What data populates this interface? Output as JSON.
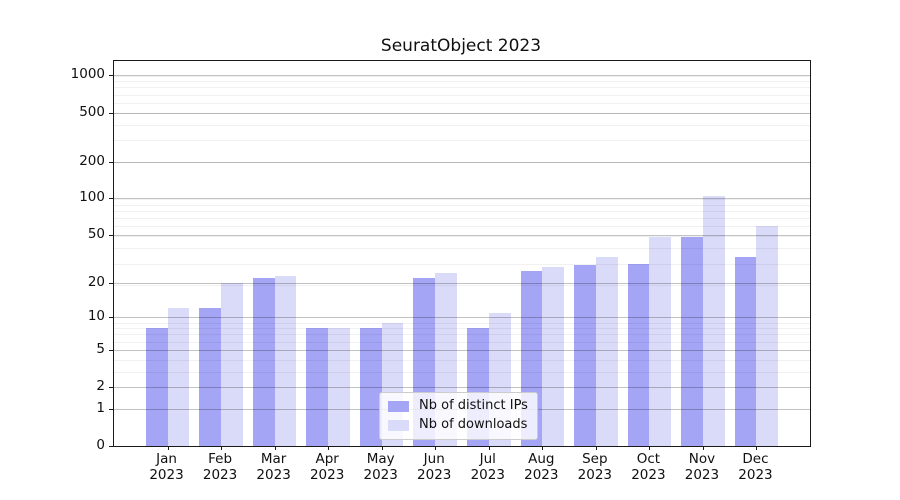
{
  "title": "SeuratObject 2023",
  "chart_data": {
    "type": "bar",
    "title": "SeuratObject 2023",
    "categories": [
      "Jan",
      "Feb",
      "Mar",
      "Apr",
      "May",
      "Jun",
      "Jul",
      "Aug",
      "Sep",
      "Oct",
      "Nov",
      "Dec"
    ],
    "year_line": "2023",
    "series": [
      {
        "name": "Nb of distinct IPs",
        "color": "#a5a5f5",
        "values": [
          8,
          12,
          22,
          8,
          8,
          22,
          8,
          25,
          28,
          29,
          48,
          33
        ]
      },
      {
        "name": "Nb of downloads",
        "color": "#dadaf9",
        "values": [
          12,
          20,
          23,
          8,
          9,
          24,
          11,
          27,
          33,
          48,
          104,
          60
        ]
      }
    ],
    "yticks": [
      0,
      1,
      2,
      5,
      10,
      20,
      50,
      100,
      200,
      500,
      1000
    ],
    "ylim": [
      0,
      1310
    ],
    "scale": "log10(value+1)",
    "grid": true,
    "legend_position": "bottom-center",
    "xlabel": "",
    "ylabel": ""
  }
}
